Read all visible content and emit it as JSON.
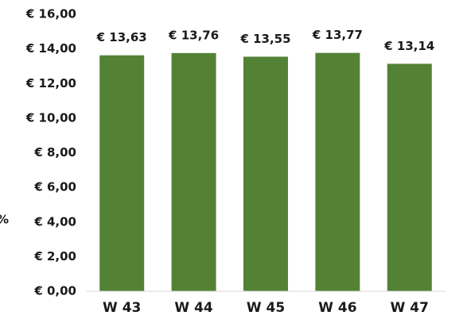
{
  "chart_data": {
    "type": "bar",
    "ylabel": "%",
    "categories": [
      "W 43",
      "W 44",
      "W 45",
      "W 46",
      "W 47"
    ],
    "values": [
      13.63,
      13.76,
      13.55,
      13.77,
      13.14
    ],
    "value_labels": [
      "€ 13,63",
      "€ 13,76",
      "€ 13,55",
      "€ 13,77",
      "€ 13,14"
    ],
    "color": "#548235",
    "ylim": [
      0,
      16
    ],
    "yticks": [
      {
        "value": 0,
        "label": "€ 0,00"
      },
      {
        "value": 2,
        "label": "€ 2,00"
      },
      {
        "value": 4,
        "label": "€ 4,00"
      },
      {
        "value": 6,
        "label": "€ 6,00"
      },
      {
        "value": 8,
        "label": "€ 8,00"
      },
      {
        "value": 10,
        "label": "€ 10,00"
      },
      {
        "value": 12,
        "label": "€ 12,00"
      },
      {
        "value": 14,
        "label": "€ 14,00"
      },
      {
        "value": 16,
        "label": "€ 16,00"
      }
    ],
    "grid": false
  }
}
